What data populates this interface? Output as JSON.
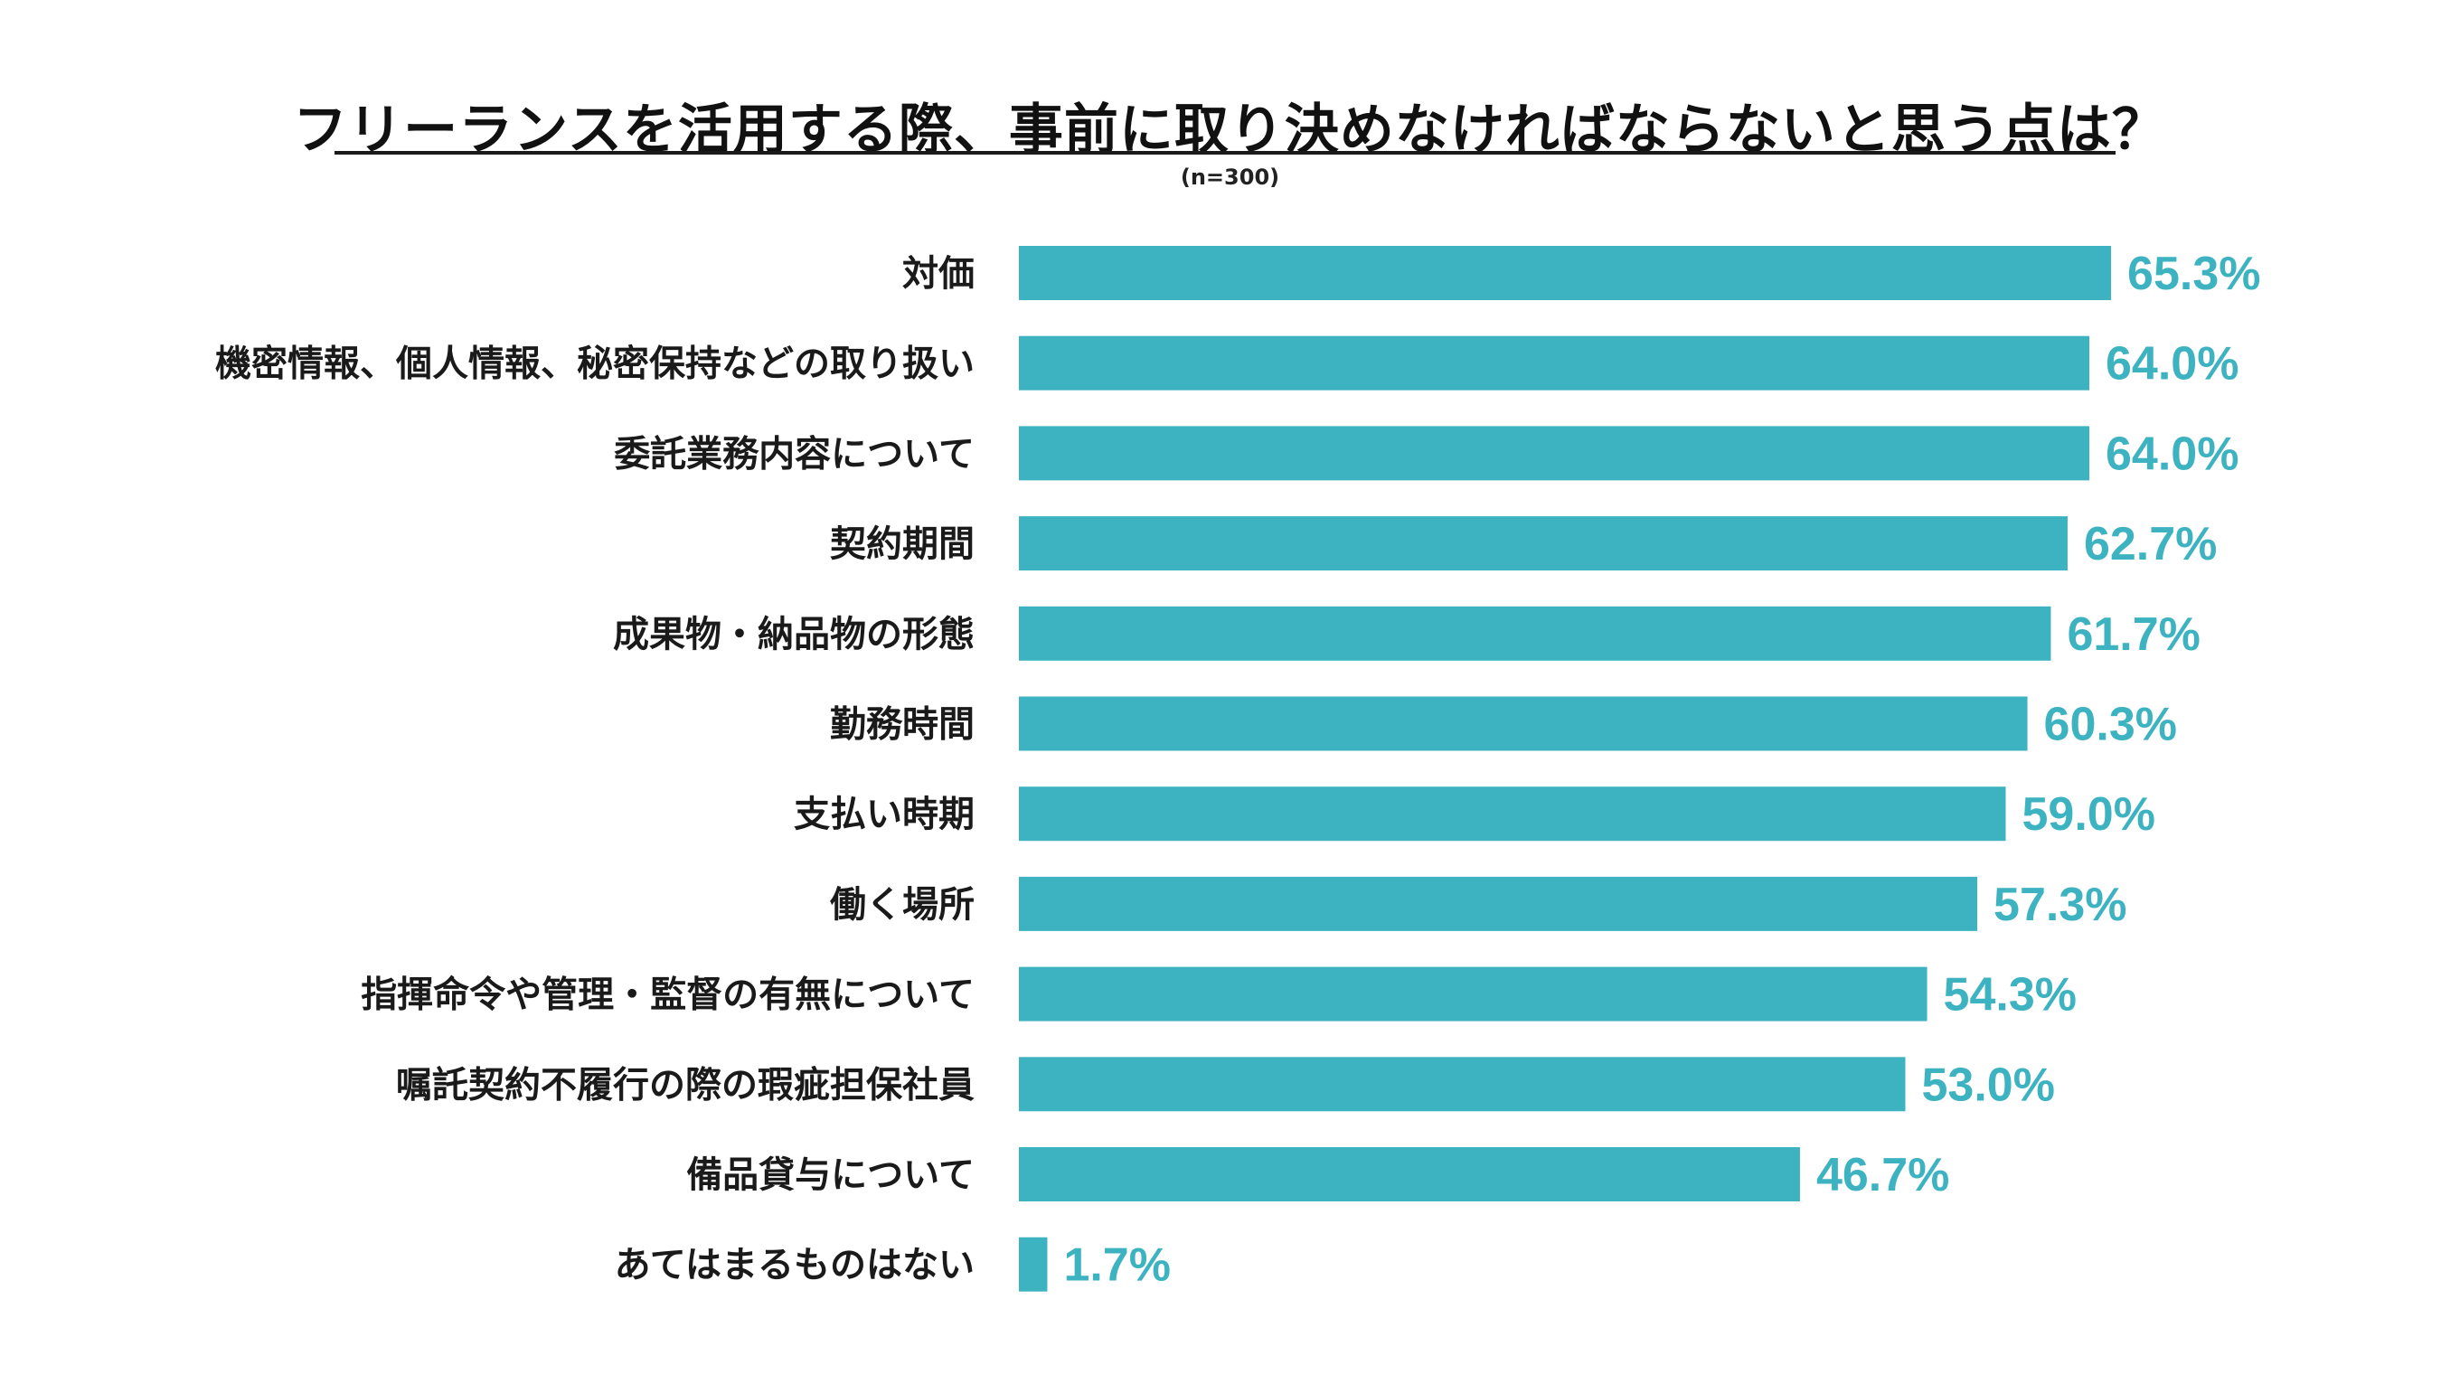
{
  "chart_data": {
    "type": "bar",
    "orientation": "horizontal",
    "title": "フリーランスを活用する際、事前に取り決めなければならないと思う点は？",
    "subtitle": "(n=300)",
    "unit": "%",
    "categories": [
      "対価",
      "機密情報、個人情報、秘密保持などの取り扱い",
      "委託業務内容について",
      "契約期間",
      "成果物・納品物の形態",
      "勤務時間",
      "支払い時期",
      "働く場所",
      "指揮命令や管理・監督の有無について",
      "嘱託契約不履行の際の瑕疵担保社員",
      "備品貸与について",
      "あてはまるものはない"
    ],
    "values": [
      65.3,
      64.0,
      64.0,
      62.7,
      61.7,
      60.3,
      59.0,
      57.3,
      54.3,
      53.0,
      46.7,
      1.7
    ],
    "value_labels": [
      "65.3%",
      "64.0%",
      "64.0%",
      "62.7%",
      "61.7%",
      "60.3%",
      "59.0%",
      "57.3%",
      "54.3%",
      "53.0%",
      "46.7%",
      "1.7%"
    ],
    "bar_color": "#3db3c1",
    "value_label_color": "#3db3c1",
    "grid": false,
    "legend": "none"
  }
}
